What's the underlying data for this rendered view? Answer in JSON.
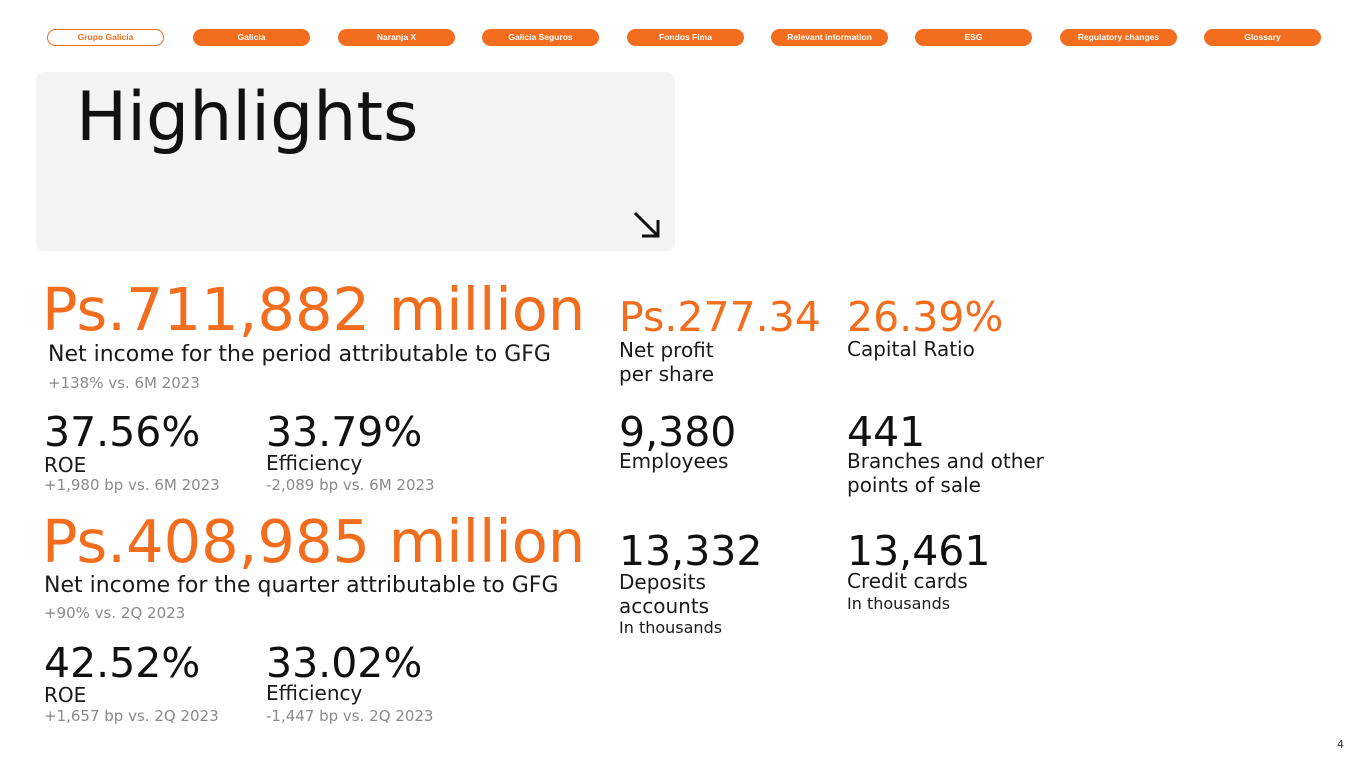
{
  "nav": [
    "Grupo Galicia",
    "Galicia",
    "Naranja X",
    "Galicia Seguros",
    "Fondos Fima",
    "Relevant information",
    "ESG",
    "Regulatory changes",
    "Glossary"
  ],
  "header": {
    "title": "Highlights"
  },
  "period": {
    "value": "Ps.711,882 million",
    "label": "Net income for the period attributable to GFG",
    "change": "+138% vs. 6M 2023",
    "ratios": [
      {
        "value": "37.56%",
        "label": "ROE",
        "change": "+1,980 bp vs. 6M 2023"
      },
      {
        "value": "33.79%",
        "label": "Efficiency",
        "change": "-2,089 bp vs. 6M 2023"
      }
    ]
  },
  "quarter": {
    "value": "Ps.408,985 million",
    "label": "Net income for the quarter attributable to GFG",
    "change": "+90% vs. 2Q 2023",
    "ratios": [
      {
        "value": "42.52%",
        "label": "ROE",
        "change": "+1,657 bp vs. 2Q 2023"
      },
      {
        "value": "33.02%",
        "label": "Efficiency",
        "change": "-1,447 bp vs. 2Q 2023"
      }
    ]
  },
  "stats": [
    {
      "value": "Ps.277.34",
      "label": "Net profit per share"
    },
    {
      "value": "26.39%",
      "label": "Capital Ratio"
    },
    {
      "value": "9,380",
      "label": "Employees"
    },
    {
      "value": "441",
      "label": "Branches and other points of sale"
    },
    {
      "value": "13,332",
      "label": "Deposits accounts",
      "note": "In thousands"
    },
    {
      "value": "13,461",
      "label": "Credit cards",
      "note": "In thousands"
    }
  ],
  "page_number": "4"
}
